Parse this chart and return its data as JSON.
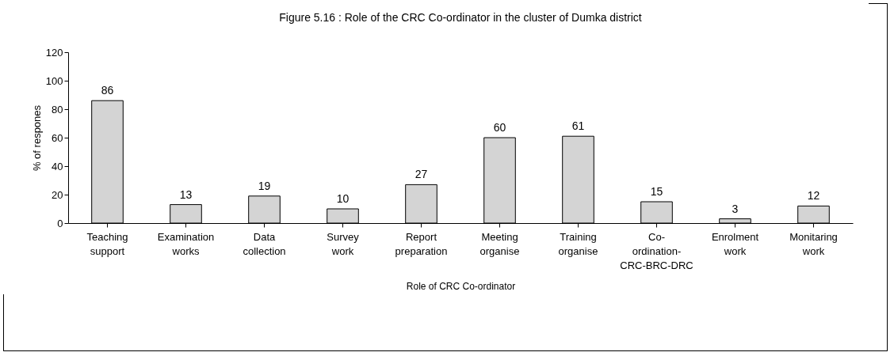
{
  "chart_data": {
    "type": "bar",
    "title": "Figure 5.16 : Role of the CRC Co-ordinator in the cluster of Dumka district",
    "xlabel": "Role of CRC Co-ordinator",
    "ylabel": "% of respones",
    "categories": [
      "Teaching support",
      "Examination works",
      "Data collection",
      "Survey work",
      "Report preparation",
      "Meeting organise",
      "Training organise",
      "Co-ordination-CRC-BRC-DRC",
      "Enrolment work",
      "Monitaring work"
    ],
    "values": [
      86,
      13,
      19,
      10,
      27,
      60,
      61,
      15,
      3,
      12
    ],
    "color": "#d4d4d4",
    "ylim": [
      0,
      120
    ],
    "yticks": [
      0,
      20,
      40,
      60,
      80,
      100,
      120
    ],
    "grid": false,
    "data_labels": true
  }
}
